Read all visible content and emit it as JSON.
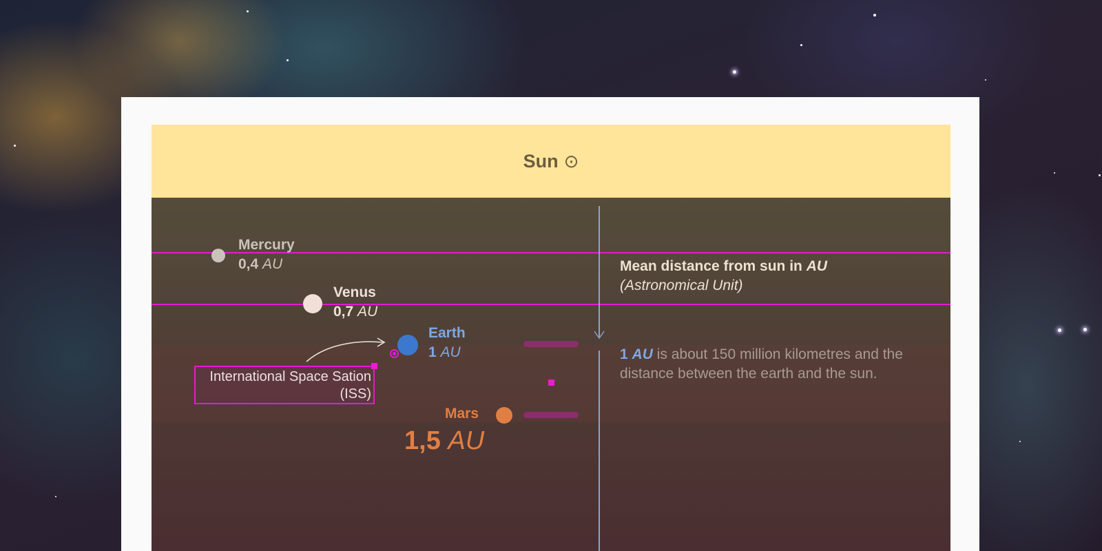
{
  "sun": {
    "label": "Sun",
    "symbol": "⊙"
  },
  "planets": {
    "mercury": {
      "name": "Mercury",
      "distance_value": "0,4",
      "distance_unit": "AU",
      "color": "#cbc3bb"
    },
    "venus": {
      "name": "Venus",
      "distance_value": "0,7",
      "distance_unit": "AU",
      "color": "#f0e0d8"
    },
    "earth": {
      "name": "Earth",
      "distance_value": "1",
      "distance_unit": "AU",
      "color": "#3d78cf"
    },
    "mars": {
      "name": "Mars",
      "distance_value": "1,5",
      "distance_unit": "AU",
      "color": "#e07f45"
    }
  },
  "legend": {
    "title_prefix": "Mean distance from sun in",
    "title_unit": "AU",
    "subtitle": "(Astronomical Unit)"
  },
  "au_note": {
    "value": "1",
    "unit": "AU",
    "text": "is about 150 million kilometres and the distance between the earth and the sun."
  },
  "iss": {
    "label": "International Space Sation",
    "abbr": "(ISS)"
  },
  "colors": {
    "sun_bar": "#ffe59a",
    "guide_line": "#e21ccf",
    "axis": "#8aa4cc",
    "bar": "#8d2d6b"
  }
}
